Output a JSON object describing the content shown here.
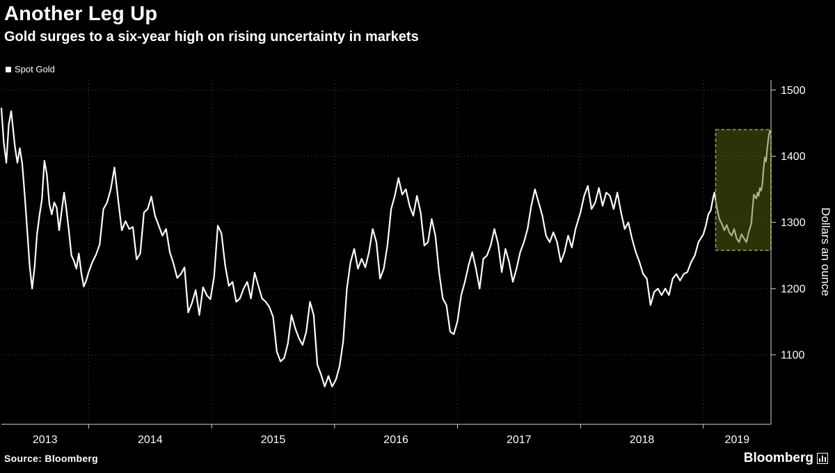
{
  "header": {
    "title": "Another Leg Up",
    "subtitle": "Gold surges to a six-year high on rising uncertainty in markets"
  },
  "legend": {
    "label": "Spot Gold",
    "swatch_color": "#ffffff"
  },
  "footer": {
    "source": "Source: Bloomberg",
    "brand": "Bloomberg"
  },
  "chart_data": {
    "type": "line",
    "title": "Another Leg Up",
    "subtitle": "Gold surges to a six-year high on rising uncertainty in markets",
    "xlabel": "",
    "ylabel": "Dollars an ounce",
    "xlim": [
      2013.29,
      2019.55
    ],
    "ylim": [
      995,
      1515
    ],
    "yticks": [
      1100,
      1200,
      1300,
      1400,
      1500
    ],
    "x_gridlines": [
      2014,
      2015,
      2016,
      2017,
      2018,
      2019
    ],
    "xticks": [
      {
        "x": 2013.645,
        "label": "2013"
      },
      {
        "x": 2014.5,
        "label": "2014"
      },
      {
        "x": 2015.5,
        "label": "2015"
      },
      {
        "x": 2016.5,
        "label": "2016"
      },
      {
        "x": 2017.5,
        "label": "2017"
      },
      {
        "x": 2018.5,
        "label": "2018"
      },
      {
        "x": 2019.275,
        "label": "2019"
      }
    ],
    "grid_on": true,
    "grid_color": "#4a4a4a",
    "axis_color": "#d9d9d9",
    "background": "#000000",
    "legend_position": "top-left",
    "highlight": {
      "x0": 2019.1,
      "x1": 2019.55,
      "y0": 1258,
      "y1": 1440,
      "fill": "#55660f",
      "fill_opacity": 0.5,
      "border": "#97ad3a"
    },
    "series": [
      {
        "name": "Spot Gold",
        "color": "#ffffff",
        "points": [
          [
            2013.29,
            1472
          ],
          [
            2013.31,
            1420
          ],
          [
            2013.33,
            1390
          ],
          [
            2013.35,
            1448
          ],
          [
            2013.37,
            1468
          ],
          [
            2013.4,
            1415
          ],
          [
            2013.42,
            1390
          ],
          [
            2013.44,
            1412
          ],
          [
            2013.46,
            1388
          ],
          [
            2013.48,
            1340
          ],
          [
            2013.5,
            1288
          ],
          [
            2013.52,
            1235
          ],
          [
            2013.54,
            1200
          ],
          [
            2013.56,
            1232
          ],
          [
            2013.58,
            1282
          ],
          [
            2013.6,
            1311
          ],
          [
            2013.62,
            1335
          ],
          [
            2013.64,
            1393
          ],
          [
            2013.66,
            1372
          ],
          [
            2013.68,
            1328
          ],
          [
            2013.7,
            1312
          ],
          [
            2013.72,
            1330
          ],
          [
            2013.74,
            1322
          ],
          [
            2013.76,
            1288
          ],
          [
            2013.78,
            1317
          ],
          [
            2013.8,
            1345
          ],
          [
            2013.82,
            1318
          ],
          [
            2013.84,
            1285
          ],
          [
            2013.86,
            1250
          ],
          [
            2013.88,
            1242
          ],
          [
            2013.9,
            1230
          ],
          [
            2013.92,
            1253
          ],
          [
            2013.94,
            1224
          ],
          [
            2013.96,
            1203
          ],
          [
            2013.98,
            1212
          ],
          [
            2014.0,
            1225
          ],
          [
            2014.03,
            1240
          ],
          [
            2014.06,
            1251
          ],
          [
            2014.09,
            1267
          ],
          [
            2014.12,
            1320
          ],
          [
            2014.15,
            1330
          ],
          [
            2014.18,
            1350
          ],
          [
            2014.21,
            1383
          ],
          [
            2014.24,
            1334
          ],
          [
            2014.27,
            1288
          ],
          [
            2014.3,
            1302
          ],
          [
            2014.33,
            1290
          ],
          [
            2014.36,
            1293
          ],
          [
            2014.39,
            1244
          ],
          [
            2014.42,
            1253
          ],
          [
            2014.45,
            1315
          ],
          [
            2014.48,
            1320
          ],
          [
            2014.51,
            1339
          ],
          [
            2014.54,
            1310
          ],
          [
            2014.57,
            1295
          ],
          [
            2014.6,
            1280
          ],
          [
            2014.63,
            1290
          ],
          [
            2014.66,
            1255
          ],
          [
            2014.69,
            1238
          ],
          [
            2014.72,
            1216
          ],
          [
            2014.75,
            1222
          ],
          [
            2014.78,
            1232
          ],
          [
            2014.81,
            1164
          ],
          [
            2014.84,
            1178
          ],
          [
            2014.87,
            1198
          ],
          [
            2014.9,
            1160
          ],
          [
            2014.93,
            1202
          ],
          [
            2014.96,
            1190
          ],
          [
            2014.99,
            1184
          ],
          [
            2015.02,
            1218
          ],
          [
            2015.05,
            1295
          ],
          [
            2015.08,
            1283
          ],
          [
            2015.11,
            1235
          ],
          [
            2015.14,
            1204
          ],
          [
            2015.17,
            1210
          ],
          [
            2015.2,
            1180
          ],
          [
            2015.23,
            1185
          ],
          [
            2015.26,
            1200
          ],
          [
            2015.29,
            1210
          ],
          [
            2015.32,
            1185
          ],
          [
            2015.35,
            1224
          ],
          [
            2015.38,
            1204
          ],
          [
            2015.41,
            1185
          ],
          [
            2015.44,
            1180
          ],
          [
            2015.47,
            1172
          ],
          [
            2015.5,
            1157
          ],
          [
            2015.53,
            1105
          ],
          [
            2015.56,
            1090
          ],
          [
            2015.59,
            1095
          ],
          [
            2015.62,
            1117
          ],
          [
            2015.65,
            1160
          ],
          [
            2015.68,
            1140
          ],
          [
            2015.71,
            1125
          ],
          [
            2015.74,
            1115
          ],
          [
            2015.77,
            1135
          ],
          [
            2015.8,
            1180
          ],
          [
            2015.83,
            1160
          ],
          [
            2015.86,
            1085
          ],
          [
            2015.89,
            1070
          ],
          [
            2015.92,
            1052
          ],
          [
            2015.95,
            1068
          ],
          [
            2015.98,
            1052
          ],
          [
            2016.01,
            1062
          ],
          [
            2016.04,
            1082
          ],
          [
            2016.07,
            1120
          ],
          [
            2016.1,
            1200
          ],
          [
            2016.13,
            1240
          ],
          [
            2016.16,
            1260
          ],
          [
            2016.19,
            1230
          ],
          [
            2016.22,
            1245
          ],
          [
            2016.25,
            1232
          ],
          [
            2016.28,
            1255
          ],
          [
            2016.31,
            1290
          ],
          [
            2016.34,
            1270
          ],
          [
            2016.37,
            1215
          ],
          [
            2016.4,
            1230
          ],
          [
            2016.43,
            1265
          ],
          [
            2016.46,
            1320
          ],
          [
            2016.49,
            1340
          ],
          [
            2016.52,
            1367
          ],
          [
            2016.55,
            1342
          ],
          [
            2016.58,
            1350
          ],
          [
            2016.61,
            1325
          ],
          [
            2016.64,
            1310
          ],
          [
            2016.67,
            1340
          ],
          [
            2016.7,
            1315
          ],
          [
            2016.73,
            1265
          ],
          [
            2016.76,
            1270
          ],
          [
            2016.79,
            1305
          ],
          [
            2016.82,
            1280
          ],
          [
            2016.85,
            1225
          ],
          [
            2016.88,
            1185
          ],
          [
            2016.91,
            1175
          ],
          [
            2016.94,
            1135
          ],
          [
            2016.97,
            1131
          ],
          [
            2017.0,
            1151
          ],
          [
            2017.03,
            1190
          ],
          [
            2017.06,
            1210
          ],
          [
            2017.09,
            1235
          ],
          [
            2017.12,
            1255
          ],
          [
            2017.15,
            1230
          ],
          [
            2017.18,
            1200
          ],
          [
            2017.21,
            1245
          ],
          [
            2017.24,
            1250
          ],
          [
            2017.27,
            1265
          ],
          [
            2017.3,
            1290
          ],
          [
            2017.33,
            1268
          ],
          [
            2017.36,
            1225
          ],
          [
            2017.39,
            1260
          ],
          [
            2017.42,
            1240
          ],
          [
            2017.45,
            1210
          ],
          [
            2017.48,
            1230
          ],
          [
            2017.51,
            1255
          ],
          [
            2017.54,
            1270
          ],
          [
            2017.57,
            1290
          ],
          [
            2017.6,
            1325
          ],
          [
            2017.63,
            1350
          ],
          [
            2017.66,
            1330
          ],
          [
            2017.69,
            1310
          ],
          [
            2017.72,
            1280
          ],
          [
            2017.75,
            1270
          ],
          [
            2017.78,
            1285
          ],
          [
            2017.81,
            1270
          ],
          [
            2017.84,
            1240
          ],
          [
            2017.87,
            1255
          ],
          [
            2017.9,
            1280
          ],
          [
            2017.93,
            1262
          ],
          [
            2017.96,
            1290
          ],
          [
            2018.0,
            1315
          ],
          [
            2018.03,
            1340
          ],
          [
            2018.06,
            1355
          ],
          [
            2018.09,
            1320
          ],
          [
            2018.12,
            1330
          ],
          [
            2018.15,
            1352
          ],
          [
            2018.18,
            1325
          ],
          [
            2018.21,
            1345
          ],
          [
            2018.24,
            1340
          ],
          [
            2018.27,
            1320
          ],
          [
            2018.3,
            1345
          ],
          [
            2018.33,
            1315
          ],
          [
            2018.36,
            1290
          ],
          [
            2018.39,
            1300
          ],
          [
            2018.42,
            1275
          ],
          [
            2018.45,
            1255
          ],
          [
            2018.48,
            1240
          ],
          [
            2018.51,
            1222
          ],
          [
            2018.54,
            1215
          ],
          [
            2018.57,
            1175
          ],
          [
            2018.6,
            1195
          ],
          [
            2018.63,
            1200
          ],
          [
            2018.66,
            1190
          ],
          [
            2018.69,
            1200
          ],
          [
            2018.72,
            1190
          ],
          [
            2018.75,
            1215
          ],
          [
            2018.78,
            1222
          ],
          [
            2018.81,
            1212
          ],
          [
            2018.84,
            1222
          ],
          [
            2018.87,
            1225
          ],
          [
            2018.9,
            1240
          ],
          [
            2018.93,
            1250
          ],
          [
            2018.96,
            1270
          ],
          [
            2019.0,
            1282
          ],
          [
            2019.02,
            1295
          ],
          [
            2019.04,
            1312
          ],
          [
            2019.06,
            1318
          ],
          [
            2019.08,
            1338
          ],
          [
            2019.09,
            1345
          ],
          [
            2019.11,
            1322
          ],
          [
            2019.13,
            1305
          ],
          [
            2019.15,
            1298
          ],
          [
            2019.17,
            1288
          ],
          [
            2019.19,
            1296
          ],
          [
            2019.21,
            1285
          ],
          [
            2019.23,
            1280
          ],
          [
            2019.25,
            1290
          ],
          [
            2019.27,
            1276
          ],
          [
            2019.29,
            1270
          ],
          [
            2019.31,
            1282
          ],
          [
            2019.33,
            1276
          ],
          [
            2019.35,
            1270
          ],
          [
            2019.37,
            1286
          ],
          [
            2019.39,
            1298
          ],
          [
            2019.41,
            1342
          ],
          [
            2019.43,
            1336
          ],
          [
            2019.44,
            1345
          ],
          [
            2019.45,
            1340
          ],
          [
            2019.46,
            1352
          ],
          [
            2019.47,
            1348
          ],
          [
            2019.48,
            1358
          ],
          [
            2019.49,
            1382
          ],
          [
            2019.5,
            1398
          ],
          [
            2019.51,
            1392
          ],
          [
            2019.52,
            1412
          ],
          [
            2019.53,
            1428
          ],
          [
            2019.54,
            1438
          ]
        ]
      }
    ]
  }
}
